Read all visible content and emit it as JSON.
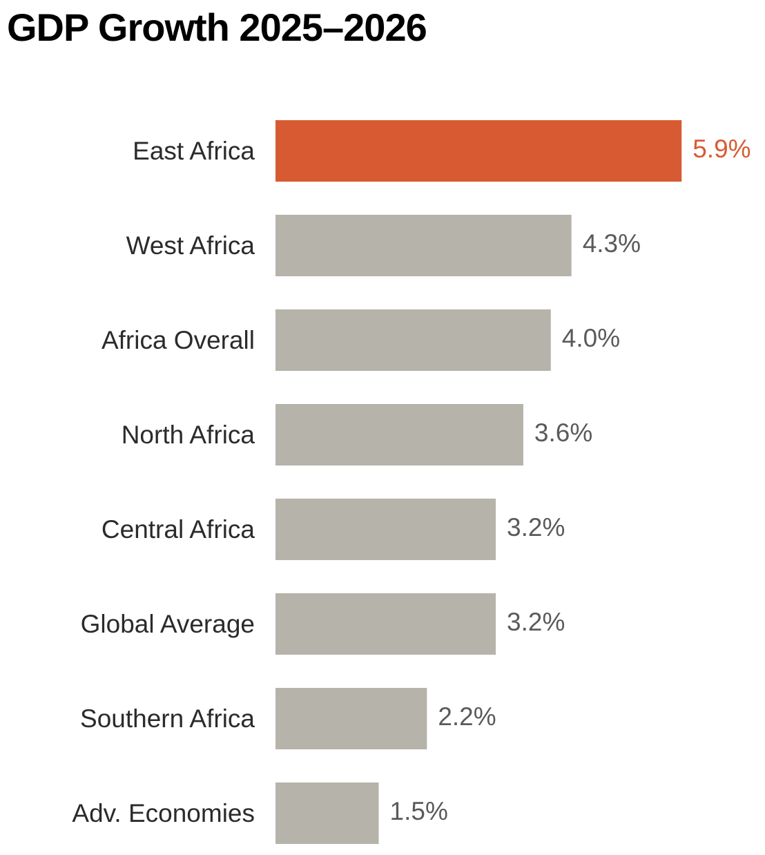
{
  "chart_data": {
    "type": "bar",
    "orientation": "horizontal",
    "title": "GDP Growth 2025–2026",
    "categories": [
      "East Africa",
      "West Africa",
      "Africa Overall",
      "North Africa",
      "Central Africa",
      "Global Average",
      "Southern Africa",
      "Adv. Economies"
    ],
    "values": [
      5.9,
      4.3,
      4.0,
      3.6,
      3.2,
      3.2,
      2.2,
      1.5
    ],
    "value_labels": [
      "5.9%",
      "4.3%",
      "4.0%",
      "3.6%",
      "3.2%",
      "3.2%",
      "2.2%",
      "1.5%"
    ],
    "unit": "%",
    "highlight_index": 0,
    "colors": {
      "highlight": "#d85a32",
      "bar": "#b5b3aa",
      "value_text": "#5a5a5a",
      "category_text": "#2b2b2b"
    },
    "xlabel": "",
    "ylabel": "",
    "grid": false,
    "legend": "none"
  }
}
